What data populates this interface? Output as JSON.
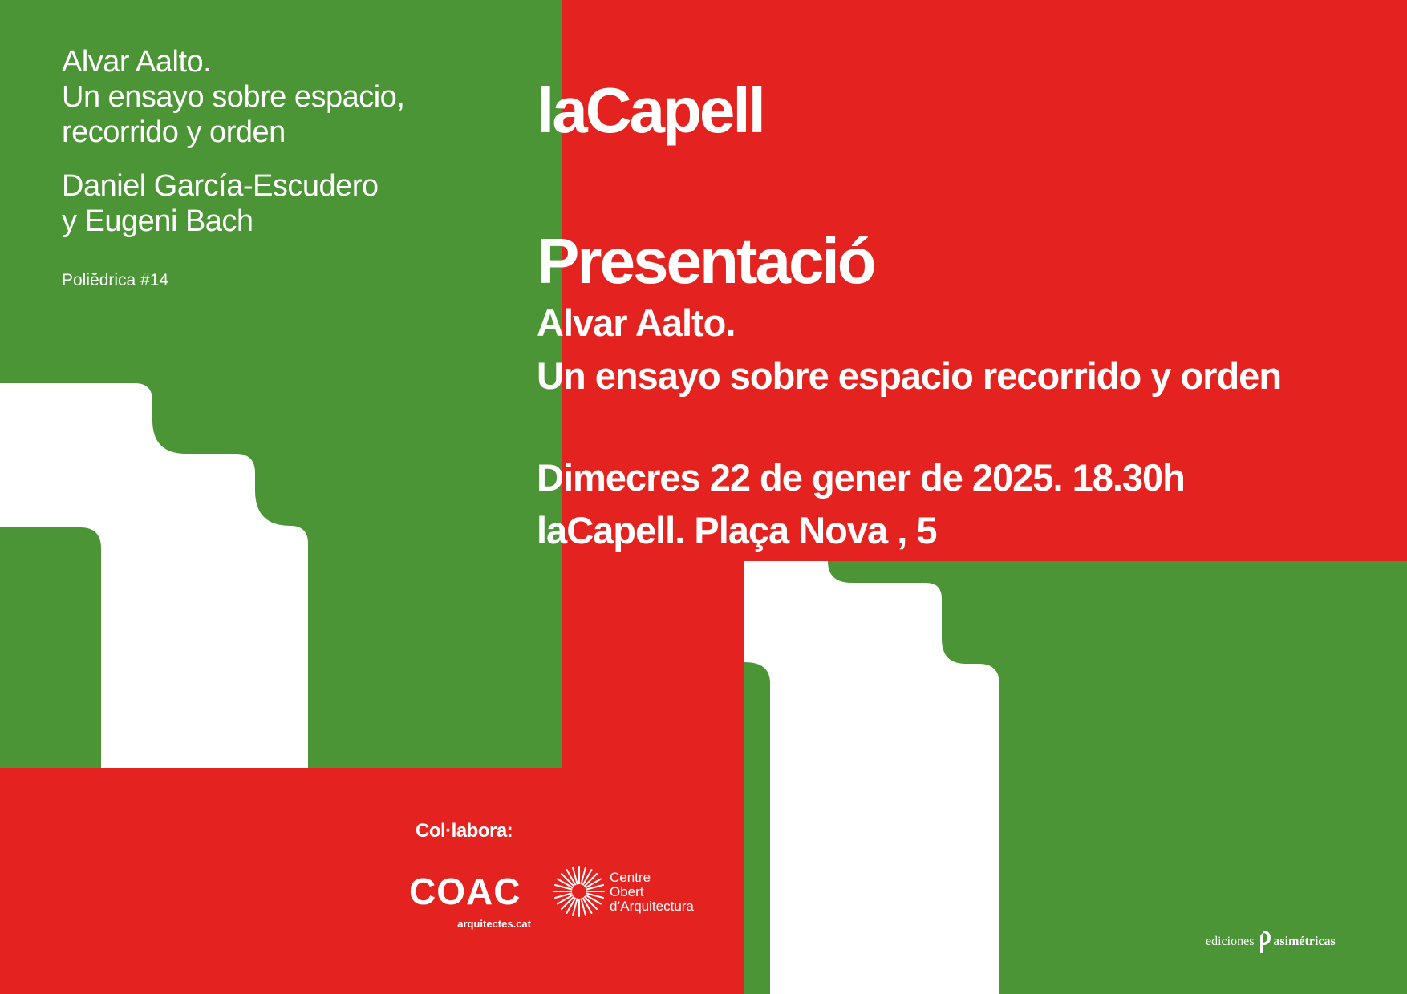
{
  "book": {
    "title": "Alvar Aalto.\nUn ensayo sobre espacio,\nrecorrido y orden",
    "authors": "Daniel García-Escudero\ny Eugeni Bach",
    "series": "Poliĕdrica #14"
  },
  "event": {
    "venue": "laCapell",
    "label": "Presentació",
    "subtitle": "Alvar Aalto.\nUn ensayo sobre espacio recorrido y orden",
    "info": "Dimecres 22 de gener de 2025. 18.30h\nlaCapell. Plaça Nova , 5"
  },
  "collaborators": {
    "label": "Col·labora:",
    "coac": {
      "mark": "COAC",
      "subtitle": "arquitectes.cat"
    },
    "coa": {
      "text": "Centre\nObert\nd’Arquitectura"
    }
  },
  "publisher": {
    "prefix": "ediciones",
    "name": "asimétricas"
  },
  "colors": {
    "green": "#4b9536",
    "red": "#e42320",
    "white": "#ffffff"
  }
}
